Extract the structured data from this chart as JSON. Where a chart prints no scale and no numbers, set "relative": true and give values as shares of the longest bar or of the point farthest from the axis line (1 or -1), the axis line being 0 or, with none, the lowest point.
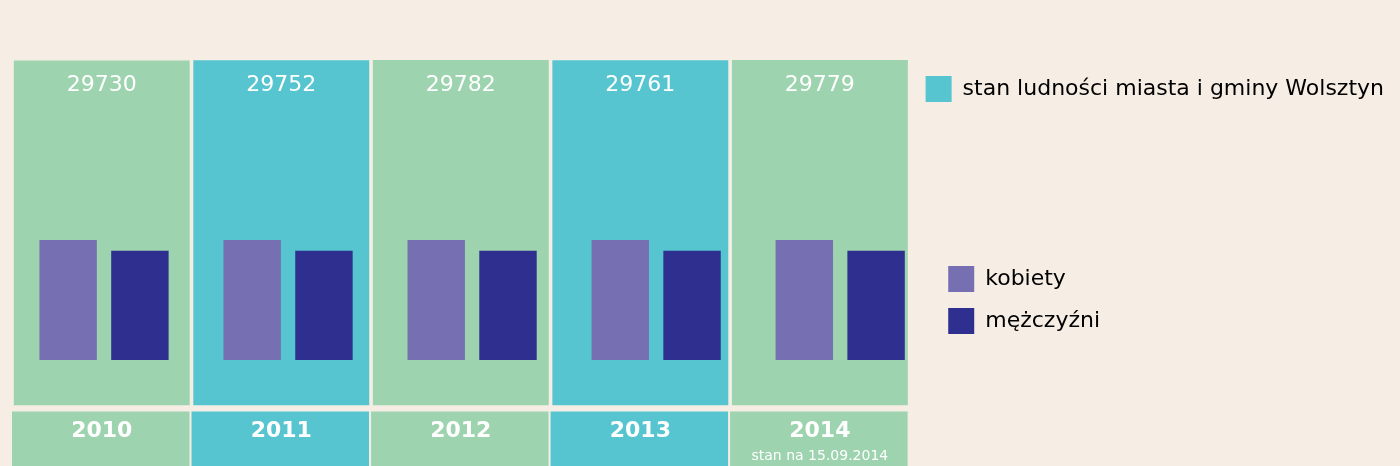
{
  "chart_data": [
    {
      "type": "bar",
      "categories": [
        "2010",
        "2011",
        "2012",
        "2013",
        "2014"
      ],
      "series": [
        {
          "name": "stan ludności miasta i gminy Wolsztyn",
          "colors": [
            "#9dd3ae",
            "#56c5d0",
            "#9dd3ae",
            "#56c5d0",
            "#9dd3ae"
          ],
          "values": [
            29730,
            29752,
            29782,
            29761,
            29779
          ]
        }
      ],
      "data_labels": true,
      "legend": "top right",
      "grid": false,
      "tick_labels": "x",
      "annotations": [
        "stan na 15.09.2014"
      ]
    },
    {
      "type": "bar",
      "categories": [
        null,
        null,
        null,
        null,
        null
      ],
      "relative": true,
      "grid": false,
      "tick_labels": false,
      "legend": "right",
      "series": [
        {
          "name": "kobiety",
          "color": "#7670b3",
          "values": [
            1,
            1,
            1,
            1,
            1
          ]
        },
        {
          "name": "mężczyźni",
          "color": "#2e2f8f",
          "values": [
            0.91,
            0.91,
            0.91,
            0.91,
            0.91
          ]
        }
      ]
    }
  ]
}
